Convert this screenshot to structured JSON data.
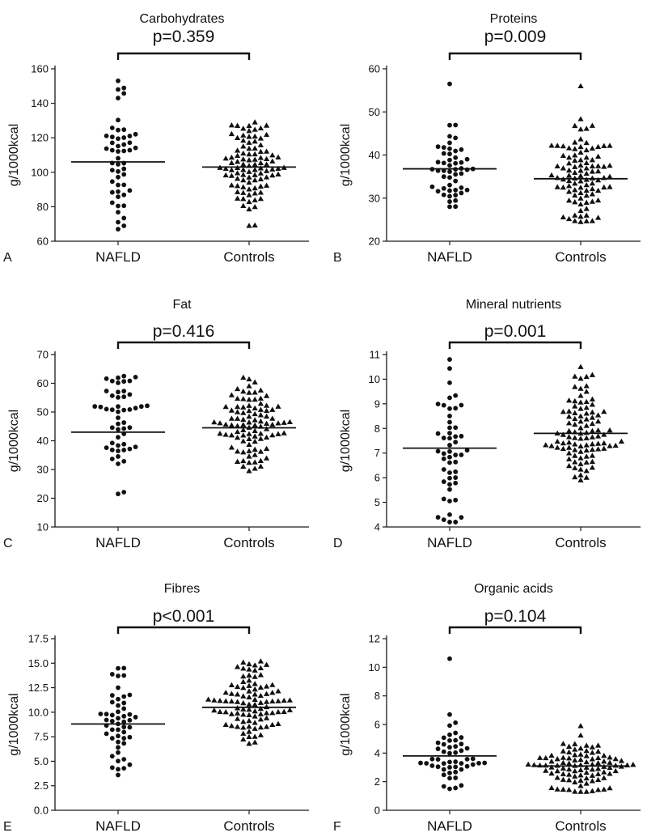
{
  "figure": {
    "description_labels": [
      "NAFLD",
      "Controls"
    ]
  },
  "chart_data": [
    {
      "type": "scatter",
      "panel_letter": "A",
      "title": "Carbohydrates",
      "ylabel": "g/1000kcal",
      "ylim": [
        60,
        160
      ],
      "yticks": [
        60,
        80,
        100,
        120,
        140,
        160
      ],
      "ytick_labels": [
        "60",
        "80",
        "100",
        "120",
        "140",
        "160"
      ],
      "categories": [
        "NAFLD",
        "Controls"
      ],
      "p_value": "p=0.359",
      "series": [
        {
          "name": "NAFLD",
          "marker": "circle",
          "mean": 106,
          "range": [
            67,
            153
          ],
          "n": 50
        },
        {
          "name": "Controls",
          "marker": "triangle",
          "mean": 103,
          "range": [
            69,
            129
          ],
          "n": 96
        }
      ]
    },
    {
      "type": "scatter",
      "panel_letter": "B",
      "title": "Proteins",
      "ylabel": "g/1000kcal",
      "ylim": [
        20,
        60
      ],
      "yticks": [
        20,
        30,
        40,
        50,
        60
      ],
      "ytick_labels": [
        "20",
        "30",
        "40",
        "50",
        "60"
      ],
      "categories": [
        "NAFLD",
        "Controls"
      ],
      "p_value": "p=0.009",
      "series": [
        {
          "name": "NAFLD",
          "marker": "circle",
          "mean": 36.8,
          "range": [
            28,
            56.5
          ],
          "n": 50
        },
        {
          "name": "Controls",
          "marker": "triangle",
          "mean": 34.5,
          "range": [
            24.5,
            56
          ],
          "n": 96
        }
      ]
    },
    {
      "type": "scatter",
      "panel_letter": "C",
      "title": "Fat",
      "ylabel": "g/1000kcal",
      "ylim": [
        10,
        70
      ],
      "yticks": [
        10,
        20,
        30,
        40,
        50,
        60,
        70
      ],
      "ytick_labels": [
        "10",
        "20",
        "30",
        "40",
        "50",
        "60",
        "70"
      ],
      "categories": [
        "NAFLD",
        "Controls"
      ],
      "p_value": "p=0.416",
      "series": [
        {
          "name": "NAFLD",
          "marker": "circle",
          "mean": 43,
          "range": [
            21.5,
            62.5
          ],
          "n": 50
        },
        {
          "name": "Controls",
          "marker": "triangle",
          "mean": 44.5,
          "range": [
            29.5,
            62
          ],
          "n": 96
        }
      ]
    },
    {
      "type": "scatter",
      "panel_letter": "D",
      "title": "Mineral nutrients",
      "ylabel": "g/1000kcal",
      "ylim": [
        4,
        11
      ],
      "yticks": [
        4,
        5,
        6,
        7,
        8,
        9,
        10,
        11
      ],
      "ytick_labels": [
        "4",
        "5",
        "6",
        "7",
        "8",
        "9",
        "10",
        "11"
      ],
      "categories": [
        "NAFLD",
        "Controls"
      ],
      "p_value": "p=0.001",
      "series": [
        {
          "name": "NAFLD",
          "marker": "circle",
          "mean": 7.2,
          "range": [
            4.2,
            10.8
          ],
          "n": 50
        },
        {
          "name": "Controls",
          "marker": "triangle",
          "mean": 7.8,
          "range": [
            5.9,
            10.5
          ],
          "n": 96
        }
      ]
    },
    {
      "type": "scatter",
      "panel_letter": "E",
      "title": "Fibres",
      "ylabel": "g/1000kcal",
      "ylim": [
        0,
        17.5
      ],
      "yticks": [
        0,
        2.5,
        5,
        7.5,
        10,
        12.5,
        15,
        17.5
      ],
      "ytick_labels": [
        "0.0",
        "2.5",
        "5.0",
        "7.5",
        "10.0",
        "12.5",
        "15.0",
        "17.5"
      ],
      "categories": [
        "NAFLD",
        "Controls"
      ],
      "p_value": "p<0.001",
      "series": [
        {
          "name": "NAFLD",
          "marker": "circle",
          "mean": 8.8,
          "range": [
            3.6,
            14.5
          ],
          "n": 50
        },
        {
          "name": "Controls",
          "marker": "triangle",
          "mean": 10.5,
          "range": [
            6.8,
            15.2
          ],
          "n": 96
        }
      ]
    },
    {
      "type": "scatter",
      "panel_letter": "F",
      "title": "Organic acids",
      "ylabel": "g/1000kcal",
      "ylim": [
        0,
        12
      ],
      "yticks": [
        0,
        2,
        4,
        6,
        8,
        10,
        12
      ],
      "ytick_labels": [
        "0",
        "2",
        "4",
        "6",
        "8",
        "10",
        "12"
      ],
      "categories": [
        "NAFLD",
        "Controls"
      ],
      "p_value": "p=0.104",
      "series": [
        {
          "name": "NAFLD",
          "marker": "circle",
          "mean": 3.8,
          "range": [
            1.5,
            10.6
          ],
          "n": 50
        },
        {
          "name": "Controls",
          "marker": "triangle",
          "mean": 3.1,
          "range": [
            1.3,
            5.9
          ],
          "n": 96
        }
      ]
    }
  ]
}
